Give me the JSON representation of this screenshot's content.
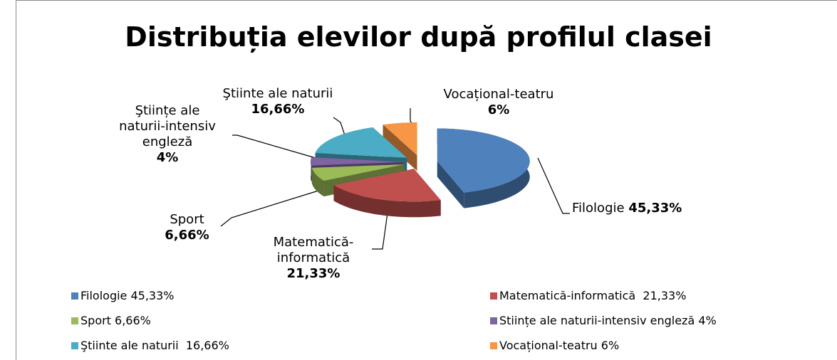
{
  "chart_data": {
    "type": "pie3d",
    "title": "Distribuția elevilor după profilul clasei",
    "categories": [
      "Filologie 45,33%",
      "Matematică-informatică  21,33%",
      "Sport 6,66%",
      "Stiințe ale naturii-intensiv engleză 4%",
      "Ştiinte ale naturii  16,66%",
      "Vocațional-teatru 6%"
    ],
    "labels": [
      "Filologie",
      "Matematică-informatică",
      "Sport",
      "Ştiințe ale naturii-intensiv engleză",
      "Ştiinte ale naturii",
      "Vocațional-teatru"
    ],
    "values": [
      45.33,
      21.33,
      6.66,
      4,
      16.66,
      6
    ],
    "value_labels": [
      "45,33%",
      "21,33%",
      "6,66%",
      "4%",
      "16,66%",
      "6%"
    ],
    "colors": [
      "#4f81bd",
      "#c0504d",
      "#9bbb59",
      "#8064a2",
      "#4bacc6",
      "#f79646"
    ]
  }
}
